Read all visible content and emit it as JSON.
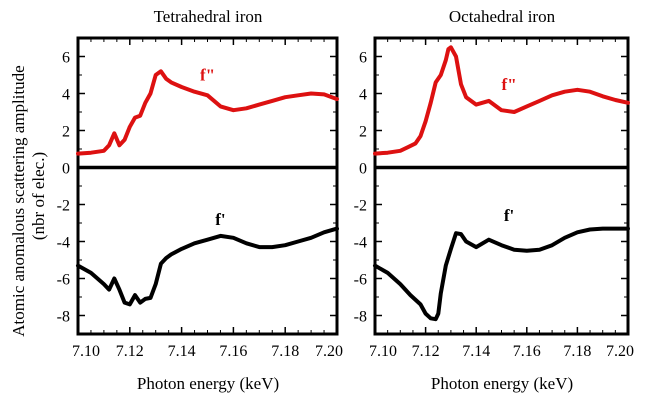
{
  "y_axis_label_line1": "Atomic anomalous scattering amplitude",
  "y_axis_label_line2": "(nbr of elec.)",
  "colors": {
    "f_double_prime": "#dd1111",
    "f_prime": "#000000",
    "frame": "#000000"
  },
  "chart_data": [
    {
      "type": "line",
      "title": "Tetrahedral iron",
      "xlabel": "Photon energy (keV)",
      "xlim": [
        7.1,
        7.2
      ],
      "ylim": [
        -9,
        7
      ],
      "xticks": [
        "7.10",
        "7.12",
        "7.14",
        "7.16",
        "7.18",
        "7.20"
      ],
      "xtick_values": [
        7.1,
        7.12,
        7.14,
        7.16,
        7.18,
        7.2
      ],
      "yticks": [
        "6",
        "4",
        "2",
        "0",
        "-2",
        "-4",
        "-6",
        "-8"
      ],
      "ytick_values": [
        6,
        4,
        2,
        0,
        -2,
        -4,
        -6,
        -8
      ],
      "zero_line": 0,
      "series": [
        {
          "name": "f\"",
          "color": "#dd1111",
          "x": [
            7.1,
            7.105,
            7.11,
            7.112,
            7.114,
            7.116,
            7.118,
            7.12,
            7.122,
            7.124,
            7.126,
            7.128,
            7.13,
            7.132,
            7.134,
            7.136,
            7.14,
            7.145,
            7.15,
            7.155,
            7.16,
            7.165,
            7.17,
            7.175,
            7.18,
            7.185,
            7.19,
            7.195,
            7.2
          ],
          "y": [
            0.75,
            0.8,
            0.9,
            1.2,
            1.85,
            1.2,
            1.5,
            2.2,
            2.7,
            2.8,
            3.5,
            4.0,
            5.0,
            5.2,
            4.8,
            4.6,
            4.35,
            4.1,
            3.9,
            3.3,
            3.1,
            3.2,
            3.4,
            3.6,
            3.8,
            3.9,
            4.0,
            3.95,
            3.7
          ]
        },
        {
          "name": "f'",
          "color": "#000000",
          "x": [
            7.1,
            7.105,
            7.11,
            7.112,
            7.114,
            7.116,
            7.118,
            7.12,
            7.122,
            7.124,
            7.126,
            7.128,
            7.13,
            7.132,
            7.134,
            7.136,
            7.14,
            7.145,
            7.15,
            7.155,
            7.16,
            7.165,
            7.17,
            7.175,
            7.18,
            7.185,
            7.19,
            7.195,
            7.2
          ],
          "y": [
            -5.3,
            -5.7,
            -6.3,
            -6.6,
            -6.0,
            -6.6,
            -7.3,
            -7.4,
            -6.9,
            -7.3,
            -7.1,
            -7.05,
            -6.3,
            -5.2,
            -4.9,
            -4.7,
            -4.4,
            -4.1,
            -3.9,
            -3.7,
            -3.8,
            -4.1,
            -4.3,
            -4.3,
            -4.2,
            -4.0,
            -3.8,
            -3.5,
            -3.3
          ]
        }
      ],
      "annotations": [
        {
          "text": "f\"",
          "x": 7.15,
          "y": 4.7,
          "color": "#dd1111"
        },
        {
          "text": "f'",
          "x": 7.155,
          "y": -3.1,
          "color": "#000000"
        }
      ]
    },
    {
      "type": "line",
      "title": "Octahedral iron",
      "xlabel": "Photon energy (keV)",
      "xlim": [
        7.1,
        7.2
      ],
      "ylim": [
        -9,
        7
      ],
      "xticks": [
        "7.10",
        "7.12",
        "7.14",
        "7.16",
        "7.18",
        "7.20"
      ],
      "xtick_values": [
        7.1,
        7.12,
        7.14,
        7.16,
        7.18,
        7.2
      ],
      "yticks": [
        "6",
        "4",
        "2",
        "0",
        "-2",
        "-4",
        "-6",
        "-8"
      ],
      "ytick_values": [
        6,
        4,
        2,
        0,
        -2,
        -4,
        -6,
        -8
      ],
      "zero_line": 0,
      "series": [
        {
          "name": "f\"",
          "color": "#dd1111",
          "x": [
            7.1,
            7.105,
            7.11,
            7.113,
            7.116,
            7.118,
            7.12,
            7.122,
            7.124,
            7.126,
            7.128,
            7.129,
            7.13,
            7.132,
            7.134,
            7.136,
            7.14,
            7.145,
            7.15,
            7.155,
            7.16,
            7.165,
            7.17,
            7.175,
            7.18,
            7.185,
            7.19,
            7.195,
            7.2
          ],
          "y": [
            0.75,
            0.8,
            0.9,
            1.1,
            1.3,
            1.7,
            2.5,
            3.5,
            4.6,
            5.0,
            5.8,
            6.4,
            6.5,
            6.0,
            4.5,
            3.8,
            3.4,
            3.6,
            3.1,
            3.0,
            3.3,
            3.6,
            3.9,
            4.1,
            4.2,
            4.1,
            3.85,
            3.65,
            3.5
          ]
        },
        {
          "name": "f'",
          "color": "#000000",
          "x": [
            7.1,
            7.105,
            7.11,
            7.114,
            7.118,
            7.12,
            7.122,
            7.124,
            7.125,
            7.126,
            7.128,
            7.13,
            7.132,
            7.134,
            7.136,
            7.14,
            7.145,
            7.15,
            7.155,
            7.16,
            7.165,
            7.17,
            7.175,
            7.18,
            7.185,
            7.19,
            7.195,
            7.2
          ],
          "y": [
            -5.3,
            -5.7,
            -6.3,
            -6.9,
            -7.4,
            -7.9,
            -8.15,
            -8.2,
            -7.9,
            -6.8,
            -5.3,
            -4.4,
            -3.55,
            -3.6,
            -4.0,
            -4.3,
            -3.9,
            -4.2,
            -4.45,
            -4.5,
            -4.45,
            -4.2,
            -3.8,
            -3.5,
            -3.35,
            -3.3,
            -3.3,
            -3.3
          ]
        }
      ],
      "annotations": [
        {
          "text": "f\"",
          "x": 7.153,
          "y": 4.2,
          "color": "#dd1111"
        },
        {
          "text": "f'",
          "x": 7.153,
          "y": -2.9,
          "color": "#000000"
        }
      ]
    }
  ]
}
